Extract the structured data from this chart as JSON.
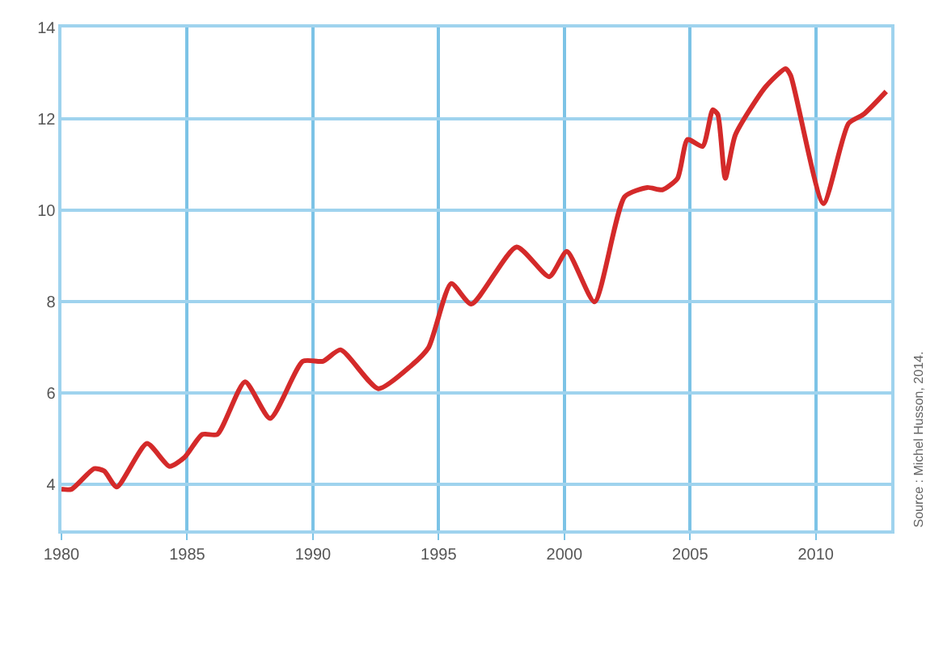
{
  "chart_data": {
    "type": "line",
    "x": [
      1980.0,
      1980.4,
      1981.3,
      1981.7,
      1982.2,
      1983.4,
      1984.3,
      1984.9,
      1985.6,
      1986.2,
      1987.3,
      1988.3,
      1989.6,
      1990.4,
      1991.1,
      1992.6,
      1993.9,
      1994.6,
      1995.5,
      1996.3,
      1998.1,
      1999.4,
      2000.1,
      2001.2,
      2002.4,
      2003.3,
      2003.9,
      2004.5,
      2004.9,
      2005.5,
      2005.9,
      2006.1,
      2006.4,
      2006.8,
      2008.0,
      2008.8,
      2009.0,
      2010.3,
      2011.3,
      2011.9,
      2012.8
    ],
    "series": [
      {
        "color": "#d42a2a",
        "values": [
          3.9,
          3.9,
          4.35,
          4.3,
          3.95,
          4.9,
          4.4,
          4.6,
          5.1,
          5.1,
          6.25,
          5.45,
          6.7,
          6.7,
          6.95,
          6.1,
          6.6,
          7.0,
          8.4,
          7.95,
          9.2,
          8.55,
          9.1,
          8.0,
          10.3,
          10.5,
          10.45,
          10.7,
          11.55,
          11.4,
          12.2,
          12.1,
          10.7,
          11.65,
          12.7,
          13.1,
          12.95,
          10.15,
          11.9,
          12.1,
          12.6
        ]
      }
    ],
    "xlim": [
      1980,
      2013
    ],
    "xticks": [
      1980,
      1985,
      1990,
      1995,
      2000,
      2005,
      2010
    ],
    "ylim": [
      3,
      14
    ],
    "yticks": [
      4,
      6,
      8,
      10,
      12,
      14
    ],
    "grid": true,
    "marker": "none",
    "line_style": "solid",
    "annotations": [
      "Source : Michel Husson, 2014."
    ]
  }
}
